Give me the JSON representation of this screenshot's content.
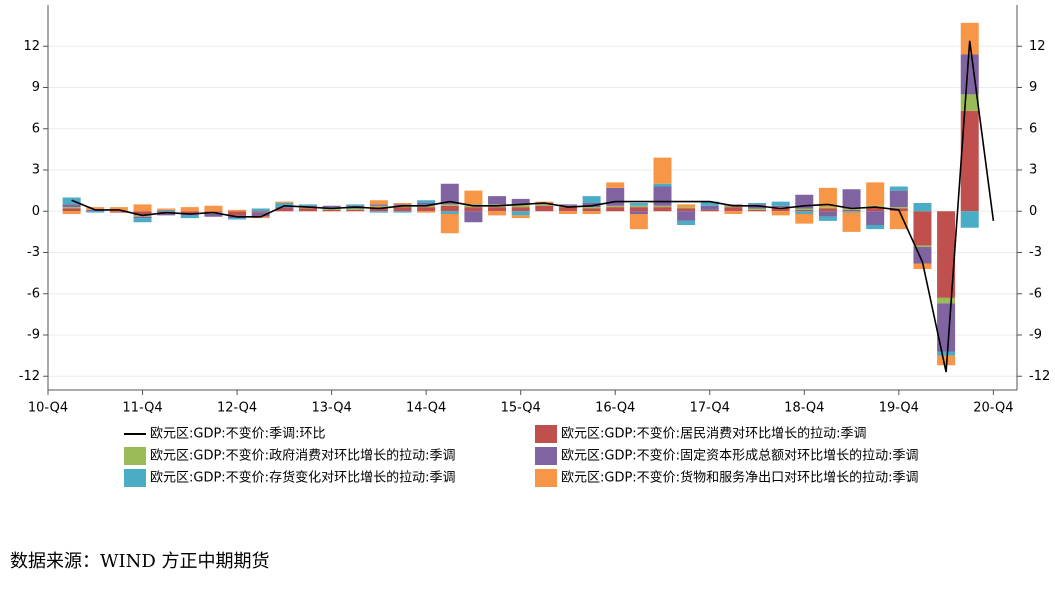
{
  "chart_data": {
    "type": "bar",
    "categories": [
      "10-Q4",
      null,
      null,
      null,
      "11-Q4",
      null,
      null,
      null,
      "12-Q4",
      null,
      null,
      null,
      "13-Q4",
      null,
      null,
      null,
      "14-Q4",
      null,
      null,
      null,
      "15-Q4",
      null,
      null,
      null,
      "16-Q4",
      null,
      null,
      null,
      "17-Q4",
      null,
      null,
      null,
      "18-Q4",
      null,
      null,
      null,
      "19-Q4",
      null,
      null,
      null,
      "20-Q4"
    ],
    "ylim": [
      -13,
      15
    ],
    "yticks": [
      -12,
      -9,
      -6,
      -3,
      0,
      3,
      6,
      9,
      12
    ],
    "y2lim": [
      -13,
      15
    ],
    "y2ticks": [
      -12,
      -9,
      -6,
      -3,
      0,
      3,
      6,
      9,
      12
    ],
    "grid": true,
    "stacked": true,
    "series": [
      {
        "name": "欧元区:GDP:不变价:季调:环比",
        "type": "line",
        "color": "#000000",
        "values": [
          null,
          0.8,
          0.1,
          0.1,
          -0.3,
          -0.1,
          -0.2,
          -0.1,
          -0.4,
          -0.4,
          0.4,
          0.3,
          0.2,
          0.3,
          0.2,
          0.4,
          0.4,
          0.7,
          0.4,
          0.4,
          0.5,
          0.6,
          0.3,
          0.4,
          0.7,
          0.7,
          0.7,
          0.7,
          0.7,
          0.4,
          0.4,
          0.2,
          0.4,
          0.5,
          0.2,
          0.3,
          0.1,
          -3.7,
          -11.7,
          12.4,
          -0.7
        ]
      },
      {
        "name": "欧元区:GDP:不变价:居民消费对环比增长的拉动:季调",
        "color": "#c0504d",
        "values": [
          null,
          0.2,
          0.0,
          -0.1,
          -0.3,
          -0.1,
          -0.2,
          -0.1,
          -0.3,
          -0.1,
          0.2,
          0.2,
          0.1,
          0.1,
          0.3,
          0.3,
          0.3,
          0.4,
          0.3,
          0.3,
          0.3,
          0.4,
          0.3,
          0.2,
          0.3,
          0.3,
          0.3,
          0.2,
          0.1,
          0.3,
          0.1,
          0.2,
          0.1,
          0.2,
          0.1,
          0.3,
          0.2,
          -2.5,
          -6.3,
          7.3,
          null
        ]
      },
      {
        "name": "欧元区:GDP:不变价:政府消费对环比增长的拉动:季调",
        "color": "#9bbb59",
        "values": [
          null,
          0.1,
          0.0,
          0.0,
          -0.1,
          0.0,
          0.0,
          -0.1,
          0.0,
          0.0,
          0.0,
          0.1,
          0.1,
          0.1,
          0.1,
          0.1,
          0.1,
          0.1,
          0.1,
          0.2,
          0.2,
          0.1,
          0.1,
          0.1,
          0.1,
          0.1,
          0.1,
          0.1,
          0.0,
          0.1,
          0.1,
          0.1,
          0.1,
          0.1,
          0.1,
          0.1,
          0.1,
          -0.1,
          -0.4,
          1.2,
          null
        ]
      },
      {
        "name": "欧元区:GDP:不变价:固定资本形成总额对环比增长的拉动:季调",
        "color": "#8064a2",
        "values": [
          null,
          0.2,
          0.1,
          0.0,
          -0.1,
          -0.2,
          -0.1,
          -0.2,
          -0.2,
          -0.3,
          0.1,
          0.1,
          0.2,
          0.2,
          0.1,
          0.1,
          0.2,
          1.5,
          -0.8,
          0.6,
          0.4,
          0.1,
          0.1,
          0.3,
          1.3,
          -0.2,
          1.4,
          -0.7,
          0.3,
          0.1,
          0.3,
          0.1,
          1.0,
          -0.4,
          1.4,
          -1.0,
          1.2,
          -1.2,
          -3.5,
          2.9,
          null
        ]
      },
      {
        "name": "欧元区:GDP:不变价:存货变化对环比增长的拉动:季调",
        "color": "#4bacc6",
        "values": [
          null,
          0.5,
          -0.1,
          0.0,
          -0.3,
          0.1,
          -0.2,
          0.0,
          -0.1,
          0.2,
          0.3,
          0.1,
          0.0,
          0.1,
          -0.1,
          -0.1,
          0.2,
          -0.2,
          0.1,
          0.0,
          -0.3,
          0.0,
          0.0,
          0.5,
          0.0,
          0.2,
          0.2,
          -0.3,
          0.3,
          0.0,
          0.1,
          0.3,
          -0.2,
          -0.3,
          -0.1,
          -0.3,
          0.3,
          0.6,
          -0.3,
          -1.2,
          null
        ]
      },
      {
        "name": "欧元区:GDP:不变价:货物和服务净出口对环比增长的拉动:季调",
        "color": "#f79646",
        "values": [
          null,
          -0.2,
          0.2,
          0.3,
          0.5,
          0.1,
          0.3,
          0.4,
          0.1,
          -0.1,
          0.1,
          0.0,
          0.0,
          0.0,
          0.3,
          0.1,
          -0.1,
          -1.4,
          1.0,
          -0.3,
          -0.2,
          0.1,
          -0.2,
          -0.2,
          0.4,
          -1.1,
          1.9,
          0.2,
          0.0,
          -0.2,
          0.0,
          -0.3,
          -0.7,
          1.4,
          -1.4,
          1.7,
          -1.3,
          -0.4,
          -0.7,
          2.3,
          null
        ]
      }
    ],
    "source": "数据来源：WIND 方正中期期货"
  }
}
